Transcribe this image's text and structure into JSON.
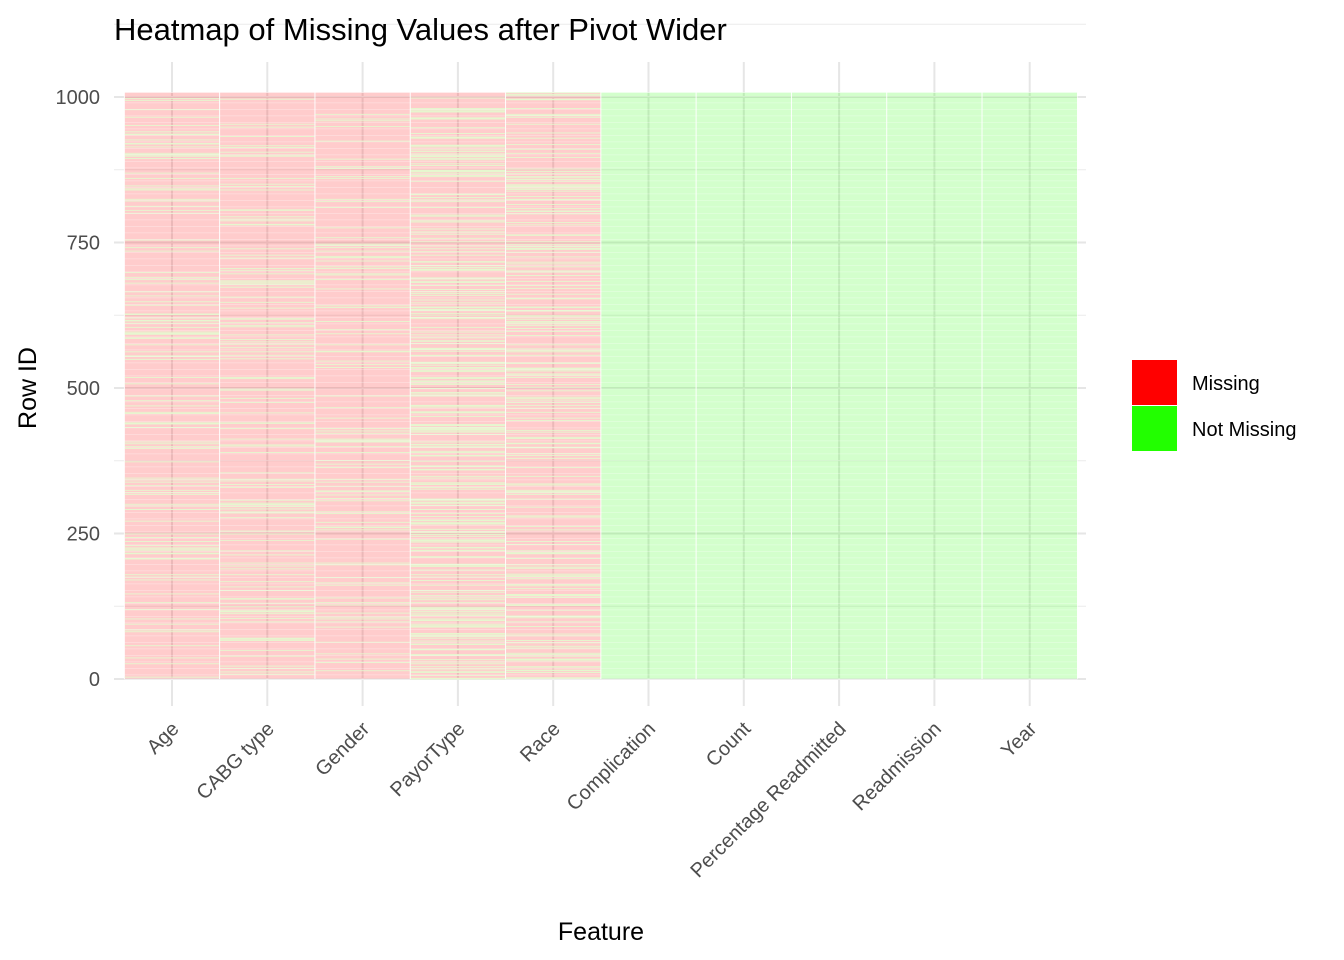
{
  "chart_data": {
    "type": "heatmap",
    "title": "Heatmap of Missing Values after Pivot Wider",
    "xlabel": "Feature",
    "ylabel": "Row ID",
    "categories": [
      "Age",
      "CABG type",
      "Gender",
      "PayorType",
      "Race",
      "Complication",
      "Count",
      "Percentage Readmitted",
      "Readmission",
      "Year"
    ],
    "y_ticks": [
      0,
      250,
      500,
      750,
      1000
    ],
    "ylim": [
      0,
      1008
    ],
    "row_count": 1008,
    "fill_alpha": 0.2,
    "legend": {
      "position": "right",
      "entries": [
        {
          "label": "Missing",
          "color": "#ff0000"
        },
        {
          "label": "Not Missing",
          "color": "#22ff00"
        }
      ]
    },
    "series": [
      {
        "feature": "Age",
        "status": "mostly missing",
        "approx_missing_fraction": 0.89
      },
      {
        "feature": "CABG type",
        "status": "mostly missing",
        "approx_missing_fraction": 0.89
      },
      {
        "feature": "Gender",
        "status": "mostly missing",
        "approx_missing_fraction": 0.94
      },
      {
        "feature": "PayorType",
        "status": "mostly missing",
        "approx_missing_fraction": 0.78
      },
      {
        "feature": "Race",
        "status": "mostly missing",
        "approx_missing_fraction": 0.83
      },
      {
        "feature": "Complication",
        "status": "not missing",
        "approx_missing_fraction": 0
      },
      {
        "feature": "Count",
        "status": "not missing",
        "approx_missing_fraction": 0
      },
      {
        "feature": "Percentage Readmitted",
        "status": "not missing",
        "approx_missing_fraction": 0
      },
      {
        "feature": "Readmission",
        "status": "not missing",
        "approx_missing_fraction": 0
      },
      {
        "feature": "Year",
        "status": "not missing",
        "approx_missing_fraction": 0
      }
    ],
    "grid": true
  }
}
